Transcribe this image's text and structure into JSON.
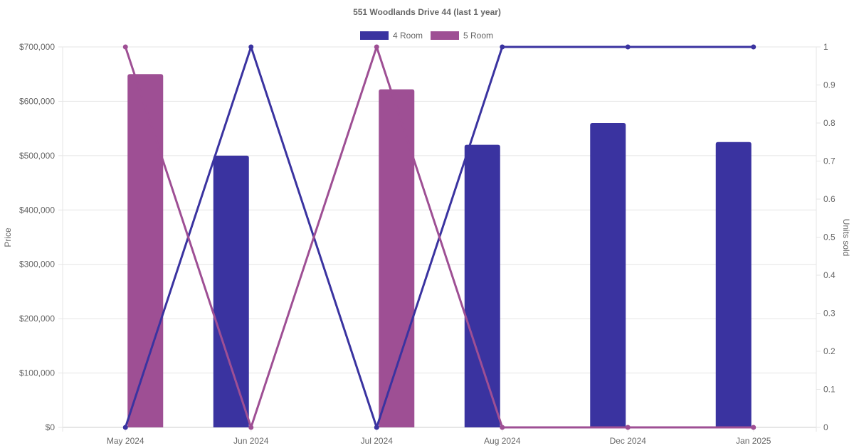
{
  "chart_data": {
    "type": "bar",
    "title": "551 Woodlands Drive 44 (last 1 year)",
    "categories": [
      "May 2024",
      "Jun 2024",
      "Jul 2024",
      "Aug 2024",
      "Dec 2024",
      "Jan 2025"
    ],
    "y_left": {
      "label": "Price",
      "range": [
        0,
        700000
      ],
      "ticks": [
        "$0",
        "$100,000",
        "$200,000",
        "$300,000",
        "$400,000",
        "$500,000",
        "$600,000",
        "$700,000"
      ]
    },
    "y_right": {
      "label": "Units sold",
      "range": [
        0,
        1
      ],
      "ticks": [
        "0",
        "0.1",
        "0.2",
        "0.3",
        "0.4",
        "0.5",
        "0.6",
        "0.7",
        "0.8",
        "0.9",
        "1"
      ]
    },
    "grid": true,
    "legend_position": "top-center",
    "series": [
      {
        "name": "4 Room",
        "color": "#3a33a0",
        "price": [
          null,
          500000,
          null,
          520000,
          560000,
          525000
        ],
        "units_sold": [
          0,
          1,
          0,
          1,
          1,
          1
        ]
      },
      {
        "name": "5 Room",
        "color": "#9e4f94",
        "price": [
          650000,
          null,
          622000,
          null,
          null,
          null
        ],
        "units_sold": [
          1,
          0,
          1,
          0,
          0,
          0
        ]
      }
    ]
  }
}
